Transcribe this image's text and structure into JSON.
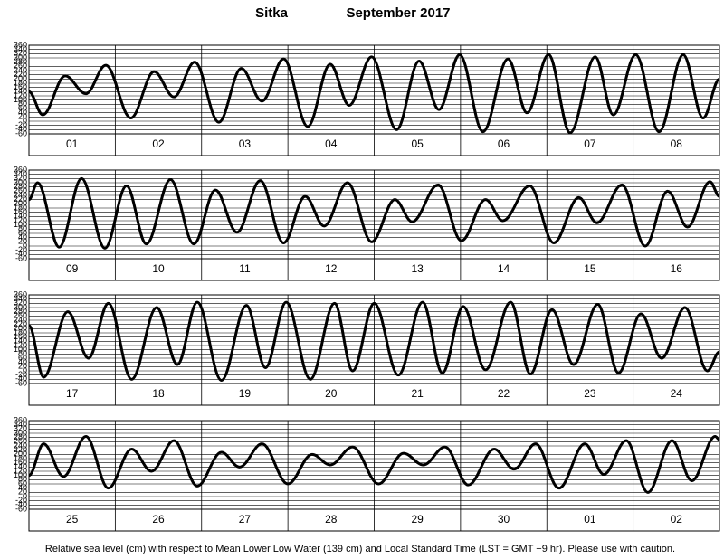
{
  "header": {
    "station": "Sitka",
    "month": "September 2017"
  },
  "footnote": "Relative sea level (cm) with respect to Mean Lower Low Water (139 cm) and Local Standard Time (LST = GMT −9 hr). Please use with caution.",
  "chart_data": [
    {
      "type": "line",
      "color": "#000000",
      "grid": true,
      "categories": [
        "01",
        "02",
        "03",
        "04",
        "05",
        "06",
        "07",
        "08"
      ],
      "xlim": [
        0,
        8
      ],
      "xticks": [
        0,
        1,
        2,
        3,
        4,
        5,
        6,
        7,
        8
      ],
      "ylim": [
        -60,
        360
      ],
      "yticks": [
        -60,
        -40,
        -20,
        0,
        20,
        40,
        60,
        80,
        100,
        120,
        140,
        160,
        180,
        200,
        220,
        240,
        260,
        280,
        300,
        320,
        340,
        360
      ],
      "x": [
        0,
        0.16,
        0.42,
        0.66,
        0.89,
        1.18,
        1.45,
        1.68,
        1.92,
        2.2,
        2.46,
        2.7,
        2.95,
        3.23,
        3.49,
        3.71,
        3.97,
        4.26,
        4.52,
        4.75,
        4.99,
        5.26,
        5.55,
        5.77,
        6.02,
        6.27,
        6.56,
        6.77,
        7.03,
        7.3,
        7.58,
        7.81,
        8
      ],
      "values": [
        140,
        30,
        215,
        130,
        265,
        15,
        235,
        115,
        280,
        -5,
        250,
        95,
        295,
        -25,
        270,
        75,
        305,
        -40,
        285,
        55,
        315,
        -50,
        295,
        40,
        315,
        -55,
        305,
        30,
        315,
        -50,
        315,
        15,
        200
      ]
    },
    {
      "type": "line",
      "color": "#000000",
      "grid": true,
      "categories": [
        "09",
        "10",
        "11",
        "12",
        "13",
        "14",
        "15",
        "16"
      ],
      "xlim": [
        0,
        8
      ],
      "xticks": [
        0,
        1,
        2,
        3,
        4,
        5,
        6,
        7,
        8
      ],
      "ylim": [
        -60,
        360
      ],
      "yticks": [
        -60,
        -40,
        -20,
        0,
        20,
        40,
        60,
        80,
        100,
        120,
        140,
        160,
        180,
        200,
        220,
        240,
        260,
        280,
        300,
        320,
        340,
        360
      ],
      "x": [
        0,
        0.1,
        0.35,
        0.61,
        0.88,
        1.13,
        1.36,
        1.64,
        1.91,
        2.16,
        2.41,
        2.68,
        2.95,
        3.2,
        3.42,
        3.69,
        3.97,
        4.24,
        4.44,
        4.74,
        5.01,
        5.29,
        5.49,
        5.8,
        6.08,
        6.37,
        6.58,
        6.87,
        7.14,
        7.4,
        7.63,
        7.89,
        8
      ],
      "values": [
        220,
        300,
        -5,
        320,
        -10,
        285,
        10,
        315,
        10,
        265,
        65,
        310,
        15,
        235,
        95,
        300,
        20,
        220,
        115,
        290,
        25,
        220,
        120,
        285,
        15,
        230,
        110,
        290,
        0,
        260,
        90,
        305,
        235
      ]
    },
    {
      "type": "line",
      "color": "#000000",
      "grid": true,
      "categories": [
        "17",
        "18",
        "19",
        "20",
        "21",
        "22",
        "23",
        "24"
      ],
      "xlim": [
        0,
        8
      ],
      "xticks": [
        0,
        1,
        2,
        3,
        4,
        5,
        6,
        7,
        8
      ],
      "ylim": [
        -60,
        360
      ],
      "yticks": [
        -60,
        -40,
        -20,
        0,
        20,
        40,
        60,
        80,
        100,
        120,
        140,
        160,
        180,
        200,
        220,
        240,
        260,
        280,
        300,
        320,
        340,
        360
      ],
      "x": [
        0,
        0.17,
        0.45,
        0.69,
        0.92,
        1.19,
        1.48,
        1.72,
        1.95,
        2.23,
        2.52,
        2.74,
        2.98,
        3.26,
        3.54,
        3.75,
        4,
        4.28,
        4.56,
        4.79,
        5.03,
        5.29,
        5.58,
        5.81,
        6.06,
        6.31,
        6.59,
        6.83,
        7.09,
        7.33,
        7.6,
        7.86,
        8
      ],
      "values": [
        215,
        -30,
        280,
        60,
        320,
        -40,
        300,
        30,
        325,
        -45,
        310,
        15,
        325,
        -40,
        320,
        0,
        320,
        -20,
        325,
        -10,
        305,
        5,
        325,
        -15,
        290,
        30,
        315,
        -10,
        270,
        60,
        300,
        0,
        90
      ]
    },
    {
      "type": "line",
      "color": "#000000",
      "grid": true,
      "categories": [
        "25",
        "26",
        "27",
        "28",
        "29",
        "30",
        "01",
        "02"
      ],
      "xlim": [
        0,
        8
      ],
      "xticks": [
        0,
        1,
        2,
        3,
        4,
        5,
        6,
        7,
        8
      ],
      "ylim": [
        -60,
        360
      ],
      "yticks": [
        -60,
        -40,
        -20,
        0,
        20,
        40,
        60,
        80,
        100,
        120,
        140,
        160,
        180,
        200,
        220,
        240,
        260,
        280,
        300,
        320,
        340,
        360
      ],
      "x": [
        0,
        0.17,
        0.4,
        0.66,
        0.92,
        1.19,
        1.42,
        1.68,
        1.95,
        2.23,
        2.44,
        2.7,
        3,
        3.28,
        3.49,
        3.75,
        4.05,
        4.34,
        4.57,
        4.82,
        5.09,
        5.39,
        5.62,
        5.87,
        6.14,
        6.44,
        6.66,
        6.92,
        7.17,
        7.45,
        7.68,
        7.95,
        8
      ],
      "values": [
        100,
        250,
        95,
        285,
        40,
        225,
        120,
        265,
        50,
        210,
        140,
        250,
        60,
        200,
        150,
        235,
        60,
        205,
        150,
        235,
        55,
        225,
        130,
        250,
        40,
        250,
        105,
        265,
        20,
        265,
        75,
        285,
        270
      ]
    }
  ]
}
